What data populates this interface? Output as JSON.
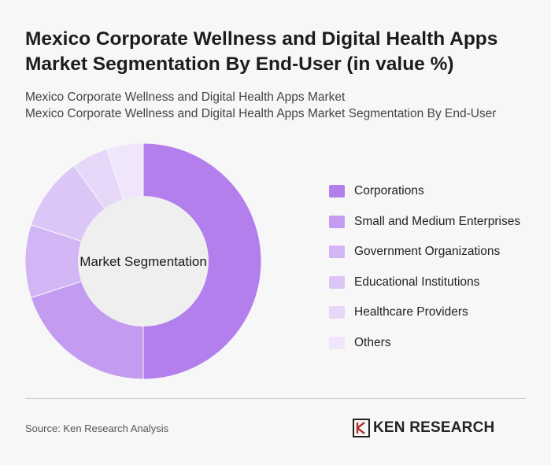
{
  "header": {
    "title": "Mexico Corporate Wellness and Digital Health Apps Market Segmentation By End-User (in value %)",
    "subtitle_line1": "Mexico Corporate Wellness and Digital Health Apps Market",
    "subtitle_line2": "Mexico Corporate Wellness and Digital Health Apps Market Segmentation By End-User"
  },
  "chart_data": {
    "type": "pie",
    "center_label": "Market Segmentation",
    "categories": [
      "Corporations",
      "Small and Medium Enterprises",
      "Government Organizations",
      "Educational Institutions",
      "Healthcare Providers",
      "Others"
    ],
    "values": [
      50,
      20,
      10,
      10,
      5,
      5
    ],
    "colors": [
      "#b37fed",
      "#c39cf1",
      "#d2b5f5",
      "#dcc6f7",
      "#e6d7f9",
      "#efe6fb"
    ],
    "legend_position": "right"
  },
  "footer": {
    "source": "Source: Ken Research Analysis",
    "logo_text": "KEN RESEARCH"
  }
}
